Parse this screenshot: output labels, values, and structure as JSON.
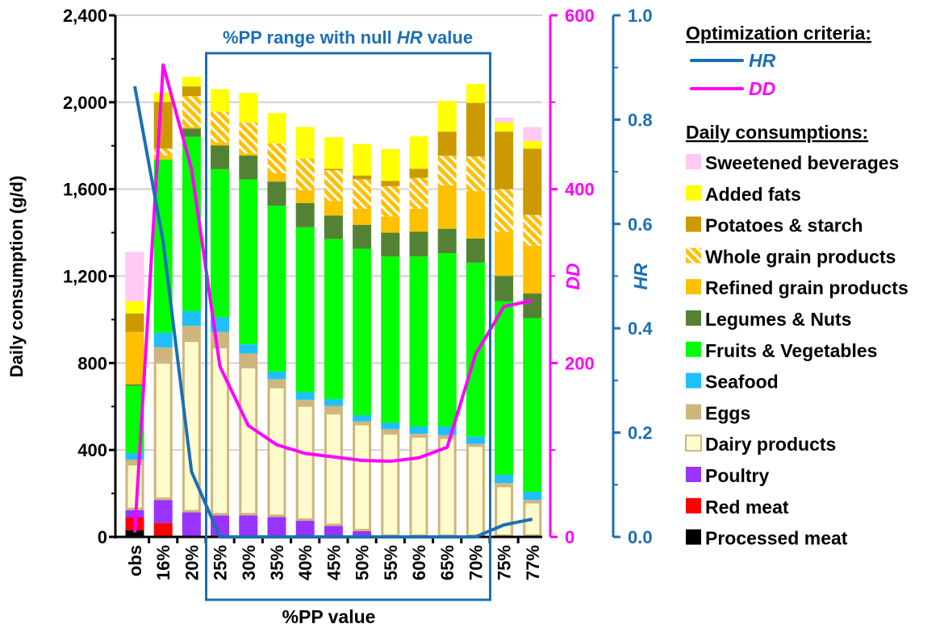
{
  "chart_data": {
    "type": "bar",
    "stacked": true,
    "categories": [
      "obs",
      "16%",
      "20%",
      "25%",
      "30%",
      "35%",
      "40%",
      "45%",
      "50%",
      "55%",
      "60%",
      "65%",
      "70%",
      "75%",
      "77%"
    ],
    "xlabel": "%PP value",
    "ylabel": "Daily consumption (g/d)",
    "ylim": [
      0,
      2400
    ],
    "yticks": [
      "0",
      "400",
      "800",
      "1,200",
      "1,600",
      "2,000",
      "2,400"
    ],
    "grid": true,
    "series": [
      {
        "name": "Processed meat",
        "color": "#000000",
        "values": [
          31,
          0,
          0,
          0,
          0,
          0,
          0,
          0,
          0,
          0,
          0,
          0,
          0,
          0,
          0
        ]
      },
      {
        "name": "Red meat",
        "color": "#FF0000",
        "values": [
          58,
          64,
          0,
          0,
          0,
          0,
          0,
          0,
          0,
          0,
          0,
          0,
          0,
          0,
          0
        ]
      },
      {
        "name": "Poultry",
        "color": "#9933FF",
        "values": [
          34,
          106,
          113,
          99,
          99,
          92,
          74,
          50,
          26,
          0,
          0,
          0,
          0,
          0,
          0
        ]
      },
      {
        "name": "Dairy products",
        "color": "#FFFBCC",
        "values": [
          217,
          638,
          795,
          780,
          688,
          603,
          536,
          524,
          499,
          482,
          468,
          462,
          425,
          240,
          165
        ]
      },
      {
        "name": "Eggs",
        "color": "#CDB57D",
        "values": [
          15,
          64,
          63,
          64,
          57,
          31,
          21,
          29,
          7,
          14,
          7,
          6,
          3,
          8,
          5
        ]
      },
      {
        "name": "Seafood",
        "color": "#1FBFFF",
        "values": [
          31,
          67,
          68,
          67,
          42,
          35,
          35,
          31,
          28,
          29,
          33,
          40,
          33,
          38,
          38
        ]
      },
      {
        "name": "Fruits & Vegetables",
        "color": "#00FF00",
        "values": [
          309,
          798,
          802,
          682,
          759,
          763,
          759,
          737,
          766,
          765,
          782,
          797,
          801,
          799,
          799
        ]
      },
      {
        "name": "Legumes & Nuts",
        "color": "#548235",
        "values": [
          7,
          0,
          38,
          109,
          110,
          111,
          111,
          108,
          110,
          110,
          114,
          113,
          111,
          116,
          113
        ]
      },
      {
        "name": "Refined grain products",
        "color": "#FFC000",
        "values": [
          241,
          18,
          7,
          14,
          10,
          38,
          59,
          67,
          74,
          75,
          106,
          199,
          218,
          203,
          220
        ]
      },
      {
        "name": "Whole grain products",
        "color": "#FFC000",
        "hatched": true,
        "values": [
          0,
          32,
          142,
          142,
          142,
          138,
          146,
          141,
          135,
          139,
          142,
          137,
          160,
          196,
          142
        ]
      },
      {
        "name": "Potatoes & starch",
        "color": "#CC9900",
        "values": [
          85,
          215,
          45,
          0,
          0,
          0,
          0,
          7,
          18,
          24,
          42,
          111,
          246,
          265,
          305
        ]
      },
      {
        "name": "Added fats",
        "color": "#FFFF00",
        "values": [
          57,
          43,
          43,
          103,
          135,
          139,
          145,
          145,
          145,
          146,
          149,
          141,
          87,
          42,
          35
        ]
      },
      {
        "name": "Sweetened beverages",
        "color": "#FFC9F4",
        "values": [
          227,
          0,
          0,
          0,
          0,
          0,
          0,
          0,
          0,
          0,
          0,
          0,
          0,
          22,
          64
        ]
      }
    ],
    "lines": [
      {
        "name": "DD",
        "color": "#FF00FF",
        "axis": "DD",
        "ylim": [
          0,
          600
        ],
        "yticks": [
          "0",
          "200",
          "400",
          "600"
        ],
        "values": [
          5,
          543,
          423,
          196,
          128,
          106,
          96,
          92,
          88,
          87,
          91,
          103,
          210,
          265,
          272
        ]
      },
      {
        "name": "HR",
        "color": "#1B6FB5",
        "axis": "HR",
        "ylim": [
          0,
          1
        ],
        "yticks": [
          "0.0",
          "0.2",
          "0.4",
          "0.6",
          "0.8",
          "1.0"
        ],
        "values": [
          0.864,
          0.566,
          0.125,
          0,
          0,
          0,
          0,
          0,
          0,
          0,
          0,
          0,
          0,
          0.023,
          0.034
        ]
      }
    ],
    "annotation": {
      "text_before": "%PP range with null ",
      "text_italic": "HR",
      "text_after": " value",
      "range": [
        "25%",
        "70%"
      ],
      "color": "#1B6FB5"
    },
    "legend": {
      "placement": "right",
      "criteria_title": "Optimization criteria",
      "consumptions_title": "Daily consumptions",
      "colon": ":"
    }
  }
}
